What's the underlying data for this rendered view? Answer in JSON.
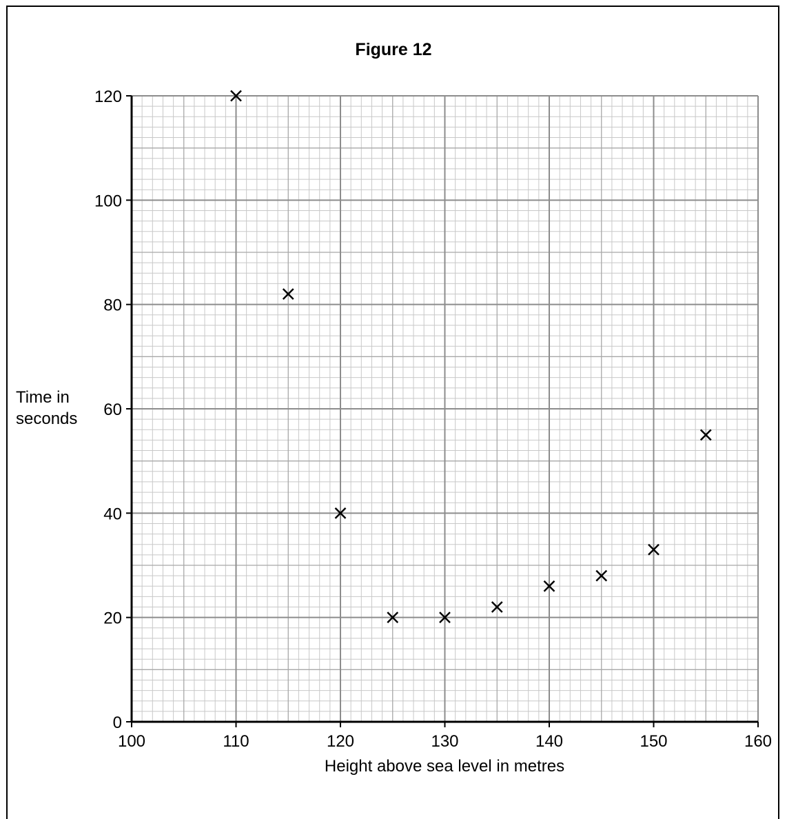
{
  "chart_data": {
    "type": "scatter",
    "title": "Figure 12",
    "xlabel": "Height above sea level in metres",
    "ylabel_lines": [
      "Time in",
      "seconds"
    ],
    "xlim": [
      100,
      160
    ],
    "ylim": [
      0,
      120
    ],
    "x_ticks": [
      100,
      110,
      120,
      130,
      140,
      150,
      160
    ],
    "y_ticks": [
      0,
      20,
      40,
      60,
      80,
      100,
      120
    ],
    "grid": true,
    "marker": "x",
    "points": [
      {
        "x": 110,
        "y": 120
      },
      {
        "x": 115,
        "y": 82
      },
      {
        "x": 120,
        "y": 40
      },
      {
        "x": 125,
        "y": 20
      },
      {
        "x": 130,
        "y": 20
      },
      {
        "x": 135,
        "y": 22
      },
      {
        "x": 140,
        "y": 26
      },
      {
        "x": 145,
        "y": 28
      },
      {
        "x": 150,
        "y": 33
      },
      {
        "x": 155,
        "y": 55
      }
    ]
  }
}
